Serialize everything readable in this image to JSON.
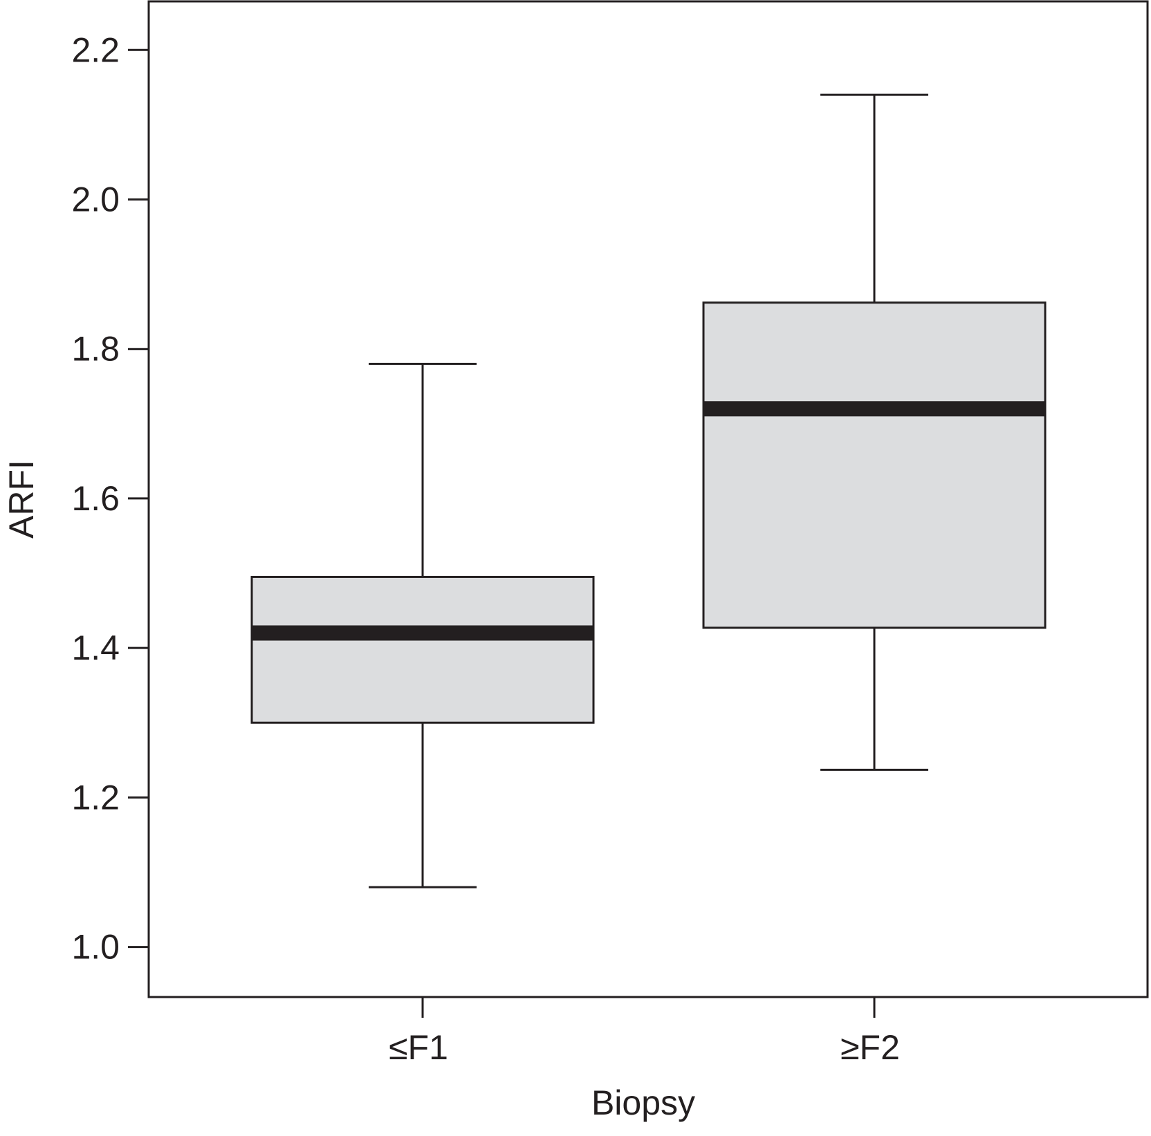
{
  "chart_data": {
    "type": "box",
    "xlabel": "Biopsy",
    "ylabel": "ARFI",
    "ylim": [
      0.933,
      2.265
    ],
    "yticks": [
      "1.0",
      "1.2",
      "1.4",
      "1.6",
      "1.8",
      "2.0",
      "2.2"
    ],
    "grid": false,
    "categories": [
      "≤F1",
      "≥F2"
    ],
    "boxes": [
      {
        "category": "≤F1",
        "min": 1.08,
        "q1": 1.3,
        "median": 1.42,
        "q3": 1.495,
        "max": 1.78
      },
      {
        "category": "≥F2",
        "min": 1.237,
        "q1": 1.427,
        "median": 1.72,
        "q3": 1.862,
        "max": 2.14
      }
    ],
    "colors": {
      "box_fill": "#dcdddf",
      "stroke": "#231f20",
      "median": "#231f20",
      "background": "#ffffff"
    }
  }
}
